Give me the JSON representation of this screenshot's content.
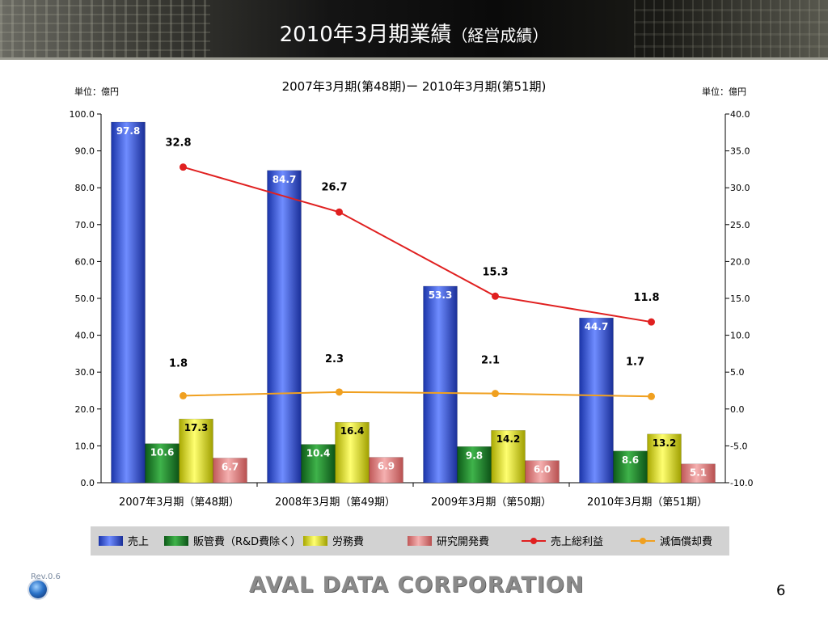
{
  "slide": {
    "title_main": "2010年3月期業績",
    "title_sub": "（経営成績）",
    "rev": "Rev.0.6",
    "brand": "AVAL DATA CORPORATION",
    "page": "6"
  },
  "chart_data": {
    "type": "bar",
    "title": "2007年3月期(第48期)ー 2010年3月期(第51期)",
    "unit_left": "単位：億円",
    "unit_right": "単位：億円",
    "categories": [
      "2007年3月期（第48期）",
      "2008年3月期（第49期）",
      "2009年3月期（第50期）",
      "2010年3月期（第51期）"
    ],
    "ylim": [
      0,
      100
    ],
    "yticks": [
      "0.0",
      "10.0",
      "20.0",
      "30.0",
      "40.0",
      "50.0",
      "60.0",
      "70.0",
      "80.0",
      "90.0",
      "100.0"
    ],
    "y2lim": [
      -10,
      40
    ],
    "y2ticks": [
      "-10.0",
      "-5.0",
      "0.0",
      "5.0",
      "10.0",
      "15.0",
      "20.0",
      "25.0",
      "30.0",
      "35.0",
      "40.0"
    ],
    "bar_series": [
      {
        "name": "売上",
        "values": [
          97.8,
          84.7,
          53.3,
          44.7
        ],
        "labels": [
          "97.8",
          "84.7",
          "53.3",
          "44.7"
        ],
        "color": "#2f55d4"
      },
      {
        "name": "販管費（R&D費除く）",
        "values": [
          10.6,
          10.4,
          9.8,
          8.6
        ],
        "labels": [
          "10.6",
          "10.4",
          "9.8",
          "8.6"
        ],
        "color": "#1f8a2e"
      },
      {
        "name": "労務費",
        "values": [
          17.3,
          16.4,
          14.2,
          13.2
        ],
        "labels": [
          "17.3",
          "16.4",
          "14.2",
          "13.2"
        ],
        "color": "#e8e82a"
      },
      {
        "name": "研究開発費",
        "values": [
          6.7,
          6.9,
          6.0,
          5.1
        ],
        "labels": [
          "6.7",
          "6.9",
          "6.0",
          "5.1"
        ],
        "color": "#e58c8c"
      }
    ],
    "line_series": [
      {
        "name": "売上総利益",
        "values": [
          32.8,
          26.7,
          15.3,
          11.8
        ],
        "labels": [
          "32.8",
          "26.7",
          "15.3",
          "11.8"
        ],
        "color": "#e02020"
      },
      {
        "name": "減価償却費",
        "values": [
          1.8,
          2.3,
          2.1,
          1.7
        ],
        "labels": [
          "1.8",
          "2.3",
          "2.1",
          "1.7"
        ],
        "color": "#f0a020"
      }
    ],
    "legend_position": "bottom",
    "grid": false
  }
}
